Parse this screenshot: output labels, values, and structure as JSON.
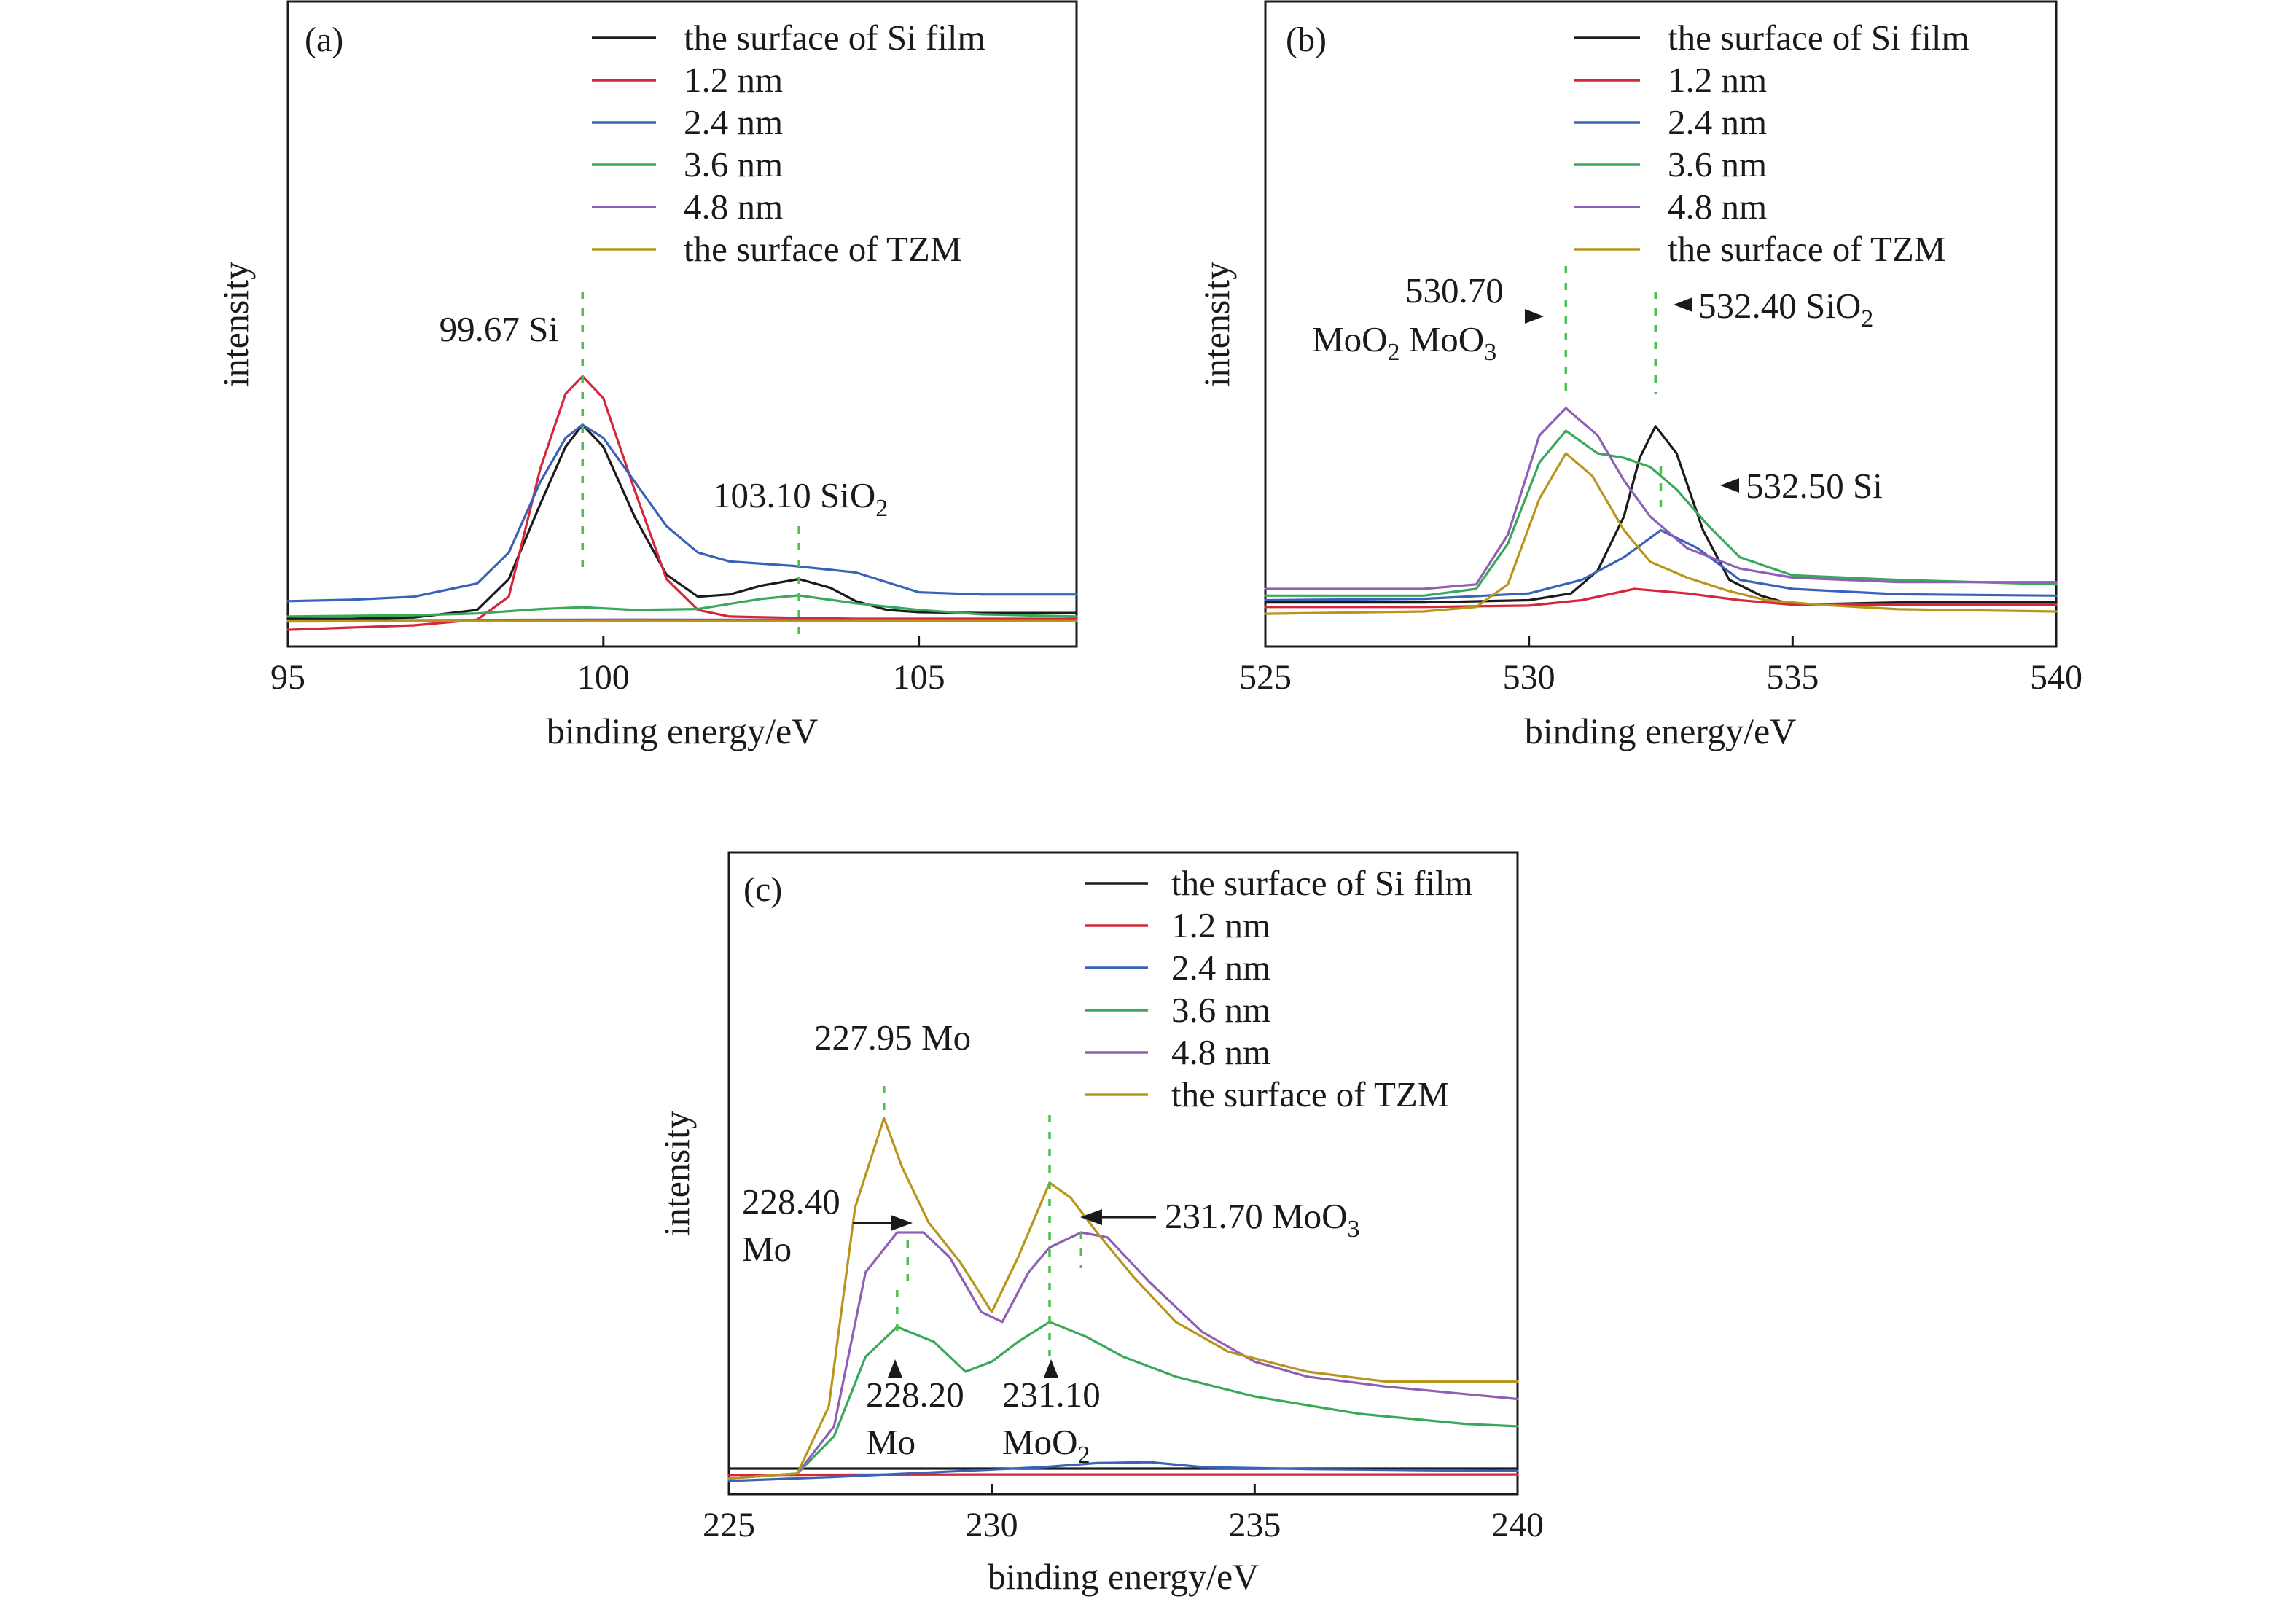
{
  "chart_data": [
    {
      "type": "line",
      "panel_label": "(a)",
      "xlabel": "binding energy/eV",
      "ylabel": "intensity",
      "xlim": [
        95,
        107.5
      ],
      "ylim": [
        0,
        100
      ],
      "xticks": [
        95,
        100,
        105
      ],
      "grid": false,
      "legend_position": "top-right",
      "series": [
        {
          "name": "the surface of Si film",
          "color": "#1a1a1a",
          "x": [
            95,
            96,
            97,
            98,
            98.5,
            99,
            99.4,
            99.67,
            100,
            100.5,
            101,
            101.5,
            102,
            102.5,
            103.1,
            103.6,
            104,
            104.5,
            105,
            106,
            107.5
          ],
          "y": [
            1,
            1,
            1.3,
            3,
            10,
            27,
            40,
            45,
            40,
            24,
            11,
            6,
            6.5,
            8.5,
            10,
            8,
            5,
            3,
            2.5,
            2.3,
            2.3
          ]
        },
        {
          "name": "1.2 nm",
          "color": "#d6273a",
          "x": [
            95,
            96,
            97,
            98,
            98.5,
            99,
            99.4,
            99.67,
            100,
            100.5,
            101,
            101.5,
            102,
            103,
            104,
            105,
            106,
            107.5
          ],
          "y": [
            -1.5,
            -1,
            -0.5,
            0.8,
            6,
            35,
            52,
            56,
            51,
            30,
            10,
            3,
            1.5,
            1.2,
            1,
            1,
            1,
            1
          ]
        },
        {
          "name": "2.4 nm",
          "color": "#3a63b8",
          "x": [
            95,
            96,
            97,
            98,
            98.5,
            99,
            99.4,
            99.67,
            100,
            100.5,
            101,
            101.5,
            102,
            103,
            104,
            105,
            106,
            107.5
          ],
          "y": [
            5,
            5.3,
            6,
            9,
            16,
            32,
            42,
            45,
            42,
            32,
            22,
            16,
            14,
            13,
            11.5,
            7,
            6.5,
            6.5
          ]
        },
        {
          "name": "3.6 nm",
          "color": "#3aa85a",
          "x": [
            95,
            97,
            98,
            99,
            99.67,
            100.5,
            101.5,
            102.5,
            103.1,
            104,
            105,
            106,
            107.5
          ],
          "y": [
            1.5,
            1.8,
            2.2,
            3.2,
            3.6,
            3,
            3.2,
            5.5,
            6.3,
            4.5,
            3,
            2,
            1.5
          ]
        },
        {
          "name": "4.8 nm",
          "color": "#8e5fb5",
          "x": [
            95,
            100,
            107.5
          ],
          "y": [
            0.6,
            0.8,
            0.7
          ]
        },
        {
          "name": "the surface of TZM",
          "color": "#b8951c",
          "x": [
            95,
            100,
            107.5
          ],
          "y": [
            0.4,
            0.5,
            0.5
          ]
        }
      ],
      "annotations": [
        {
          "text": "99.67 Si",
          "x": 99.67
        },
        {
          "text": "103.10 SiO",
          "sub": "2",
          "x": 103.1
        }
      ]
    },
    {
      "type": "line",
      "panel_label": "(b)",
      "xlabel": "binding energy/eV",
      "ylabel": "intensity",
      "xlim": [
        525,
        540
      ],
      "ylim": [
        0,
        100
      ],
      "xticks": [
        525,
        530,
        535,
        540
      ],
      "grid": false,
      "legend_position": "top-right",
      "series": [
        {
          "name": "the surface of Si film",
          "color": "#1a1a1a",
          "x": [
            525,
            528,
            530,
            530.8,
            531.3,
            531.8,
            532.1,
            532.4,
            532.8,
            533.3,
            533.8,
            534.4,
            535,
            537,
            540
          ],
          "y": [
            7,
            7,
            7.5,
            9,
            14,
            26,
            39,
            46,
            40,
            23,
            12,
            8.5,
            6.5,
            7,
            7
          ]
        },
        {
          "name": "1.2 nm",
          "color": "#d6273a",
          "x": [
            525,
            528,
            530,
            531,
            532,
            533,
            534,
            535,
            537,
            540
          ],
          "y": [
            6,
            6,
            6.3,
            7.5,
            10,
            9,
            7.5,
            6.5,
            6.5,
            6.5
          ]
        },
        {
          "name": "2.4 nm",
          "color": "#3a63b8",
          "x": [
            525,
            528,
            530,
            531,
            531.8,
            532.5,
            533.2,
            534,
            535,
            537,
            540
          ],
          "y": [
            7.5,
            7.8,
            9,
            12,
            17,
            23,
            19,
            12,
            10,
            8.8,
            8.5
          ]
        },
        {
          "name": "3.6 nm",
          "color": "#3aa85a",
          "x": [
            525,
            528,
            529,
            529.6,
            530.2,
            530.7,
            531.3,
            531.8,
            532.3,
            532.8,
            533.4,
            534,
            535,
            537,
            540
          ],
          "y": [
            8.5,
            8.5,
            10,
            20,
            38,
            45,
            40,
            39,
            37,
            32,
            24,
            17,
            13,
            12,
            11
          ]
        },
        {
          "name": "4.8 nm",
          "color": "#8e5fb5",
          "x": [
            525,
            528,
            529,
            529.6,
            530.2,
            530.7,
            531.3,
            531.8,
            532.3,
            533,
            534,
            535,
            537,
            540
          ],
          "y": [
            10,
            10,
            11,
            22,
            44,
            50,
            44,
            34,
            26,
            19,
            14.5,
            12.5,
            11.5,
            11.5
          ]
        },
        {
          "name": "the surface of TZM",
          "color": "#b8951c",
          "x": [
            525,
            528,
            529,
            529.6,
            530.2,
            530.7,
            531.2,
            531.8,
            532.3,
            533,
            533.8,
            534.5,
            535.5,
            537,
            540
          ],
          "y": [
            4.5,
            5,
            6,
            11,
            30,
            40,
            35,
            23,
            16,
            12.5,
            9.5,
            7.5,
            6.5,
            5.5,
            5
          ]
        }
      ],
      "annotations": [
        {
          "line1": "530.70",
          "line2a": "MoO",
          "line2a_sub": "2",
          "line2b": " MoO",
          "line2b_sub": "3",
          "x": 530.7
        },
        {
          "text": "532.40 SiO",
          "sub": "2",
          "x": 532.4
        },
        {
          "text": "532.50 Si",
          "x": 532.5
        }
      ]
    },
    {
      "type": "line",
      "panel_label": "(c)",
      "xlabel": "binding energy/eV",
      "ylabel": "intensity",
      "xlim": [
        225,
        240
      ],
      "ylim": [
        0,
        100
      ],
      "xticks": [
        225,
        230,
        235,
        240
      ],
      "grid": false,
      "legend_position": "top-right",
      "series": [
        {
          "name": "the surface of Si film",
          "color": "#1a1a1a",
          "x": [
            225,
            230,
            235,
            240
          ],
          "y": [
            2.5,
            2.5,
            2.5,
            2.5
          ]
        },
        {
          "name": "1.2 nm",
          "color": "#d6273a",
          "x": [
            225,
            230,
            235,
            240
          ],
          "y": [
            1.2,
            1.3,
            1.3,
            1.3
          ]
        },
        {
          "name": "2.4 nm",
          "color": "#3a63b8",
          "x": [
            225,
            227,
            229,
            231,
            232,
            233,
            234,
            236,
            238,
            240
          ],
          "y": [
            0,
            0.8,
            1.8,
            2.8,
            3.6,
            3.8,
            2.8,
            2.4,
            2.2,
            2
          ]
        },
        {
          "name": "3.6 nm",
          "color": "#3aa85a",
          "x": [
            225,
            226.3,
            227,
            227.6,
            228.2,
            228.9,
            229.5,
            230,
            230.5,
            231.1,
            231.8,
            232.5,
            233.5,
            235,
            237,
            239,
            240
          ],
          "y": [
            0.5,
            1.5,
            9,
            25,
            31,
            28,
            22,
            24,
            28,
            32,
            29,
            25,
            21,
            17,
            13.5,
            11.5,
            11
          ]
        },
        {
          "name": "4.8 nm",
          "color": "#8e5fb5",
          "x": [
            225,
            226.3,
            227,
            227.6,
            228.2,
            228.7,
            229.2,
            229.8,
            230.2,
            230.7,
            231.1,
            231.7,
            232.2,
            233,
            234,
            235,
            236,
            237.5,
            239,
            240
          ],
          "y": [
            0.5,
            1.5,
            11,
            42,
            50,
            50,
            45,
            34,
            32,
            42,
            47,
            50,
            49,
            40,
            30,
            24,
            21,
            19,
            17.5,
            16.5
          ]
        },
        {
          "name": "the surface of TZM",
          "color": "#b8951c",
          "x": [
            225,
            226.3,
            226.9,
            227.4,
            227.95,
            228.3,
            228.8,
            229.4,
            230,
            230.5,
            231.1,
            231.5,
            232,
            232.7,
            233.5,
            234.5,
            236,
            237.5,
            239,
            240
          ],
          "y": [
            0.5,
            1.5,
            15,
            55,
            73,
            63,
            52,
            44,
            34,
            45,
            60,
            57,
            50,
            41,
            32,
            26,
            22,
            20,
            20,
            20
          ]
        }
      ],
      "annotations": [
        {
          "text": "227.95 Mo",
          "x": 227.95
        },
        {
          "line1": "228.40",
          "line2": "Mo",
          "x": 228.4
        },
        {
          "line1": "228.20",
          "line2": "Mo",
          "x": 228.2
        },
        {
          "line1": "231.10",
          "line2": "MoO",
          "line2_sub": "2",
          "x": 231.1
        },
        {
          "text": "231.70 MoO",
          "sub": "3",
          "x": 231.7
        }
      ]
    }
  ]
}
